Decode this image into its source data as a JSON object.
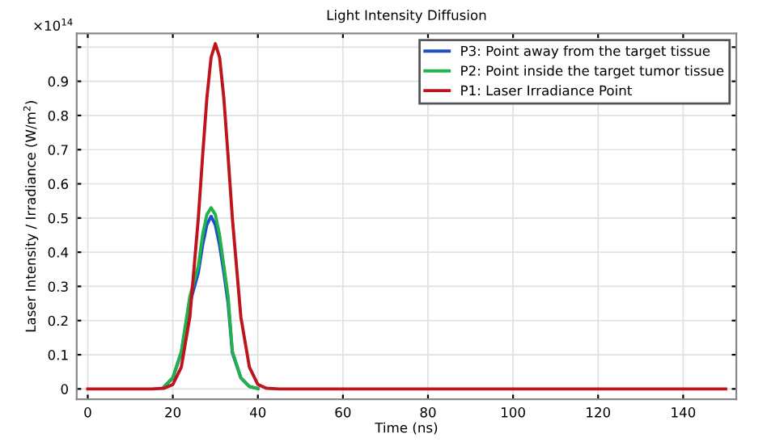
{
  "chart_data": {
    "type": "line",
    "title": "Light Intensity Diffusion",
    "xlabel": "Time (ns)",
    "ylabel": "Laser Intensity / Irradiance (W/m$^{2}$)",
    "annotations": [
      "×10$^{14}$"
    ],
    "x": [
      0,
      10,
      15,
      18,
      20,
      22,
      24,
      26,
      27,
      28,
      29,
      30,
      31,
      32,
      33,
      34,
      36,
      38,
      40,
      42,
      45,
      50,
      150
    ],
    "series": [
      {
        "name": "P3: Point away from the target tissue",
        "color": "#1f4fc8",
        "values": [
          null,
          null,
          null,
          0.007,
          0.032,
          0.106,
          0.25,
          0.34,
          0.42,
          0.48,
          0.505,
          0.48,
          0.42,
          0.34,
          0.25,
          0.106,
          0.032,
          0.007,
          0.001,
          null,
          null,
          null,
          null
        ]
      },
      {
        "name": "P2: Point inside the target tumor tissue",
        "color": "#22b14c",
        "values": [
          null,
          null,
          null,
          0.007,
          0.033,
          0.11,
          0.27,
          0.36,
          0.45,
          0.51,
          0.53,
          0.51,
          0.45,
          0.36,
          0.27,
          0.11,
          0.033,
          0.007,
          0.001,
          null,
          null,
          null,
          null
        ]
      },
      {
        "name": "P1: Laser Irradiance Point",
        "color": "#c0141c",
        "values": [
          0,
          0,
          0,
          0.002,
          0.013,
          0.064,
          0.21,
          0.5,
          0.68,
          0.85,
          0.97,
          1.01,
          0.97,
          0.85,
          0.68,
          0.5,
          0.21,
          0.064,
          0.013,
          0.002,
          0,
          0,
          0
        ]
      }
    ],
    "xlim": [
      -2.6,
      152.5
    ],
    "ylim": [
      -0.03,
      1.04
    ],
    "xticks": [
      0,
      20,
      40,
      60,
      80,
      100,
      120,
      140
    ],
    "yticks": [
      0,
      0.1,
      0.2,
      0.3,
      0.4,
      0.5,
      0.6,
      0.7,
      0.8,
      0.9,
      {
        "value": 1,
        "label": null
      }
    ],
    "grid": true,
    "legend": "top right",
    "marker": "none",
    "line_style": "solid"
  }
}
